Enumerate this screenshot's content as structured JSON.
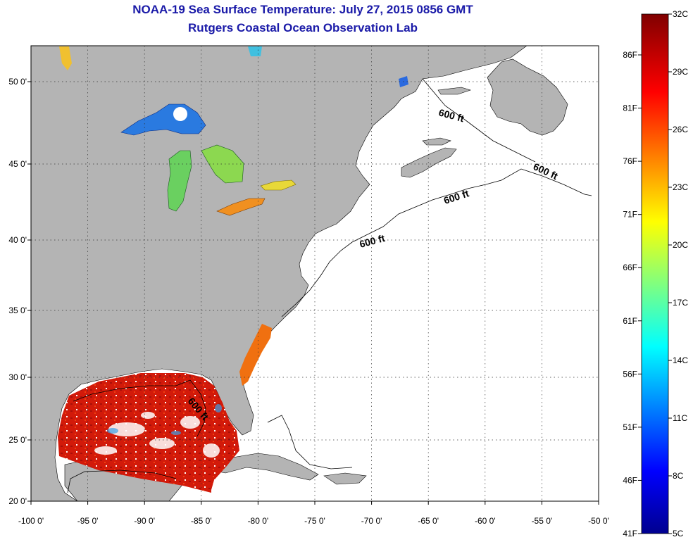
{
  "header": {
    "title": "NOAA-19 Sea Surface Temperature:  July 27, 2015 0856 GMT",
    "subtitle": "Rutgers Coastal Ocean Observation Lab"
  },
  "axes": {
    "x_ticks": [
      "-100 0'",
      "-95 0'",
      "-90 0'",
      "-85 0'",
      "-80 0'",
      "-75 0'",
      "-70 0'",
      "-65 0'",
      "-60 0'",
      "-55 0'",
      "-50 0'"
    ],
    "y_ticks": [
      "50 0'",
      "45 0'",
      "40 0'",
      "35 0'",
      "30 0'",
      "25 0'",
      "20 0'"
    ]
  },
  "isobath_labels": [
    "600 ft",
    "600 ft",
    "600 ft",
    "600 ft",
    "600 ft"
  ],
  "colorbar": {
    "celsius": [
      "32C",
      "29C",
      "26C",
      "23C",
      "20C",
      "17C",
      "14C",
      "11C",
      "8C",
      "5C"
    ],
    "fahrenheit": [
      "86F",
      "81F",
      "76F",
      "71F",
      "66F",
      "61F",
      "56F",
      "51F",
      "46F",
      "41F"
    ],
    "range_c": [
      5,
      32
    ]
  },
  "colors": {
    "land": "#b4b4b4",
    "ocean_no_data": "#ffffff",
    "title": "#1a1aa8"
  }
}
